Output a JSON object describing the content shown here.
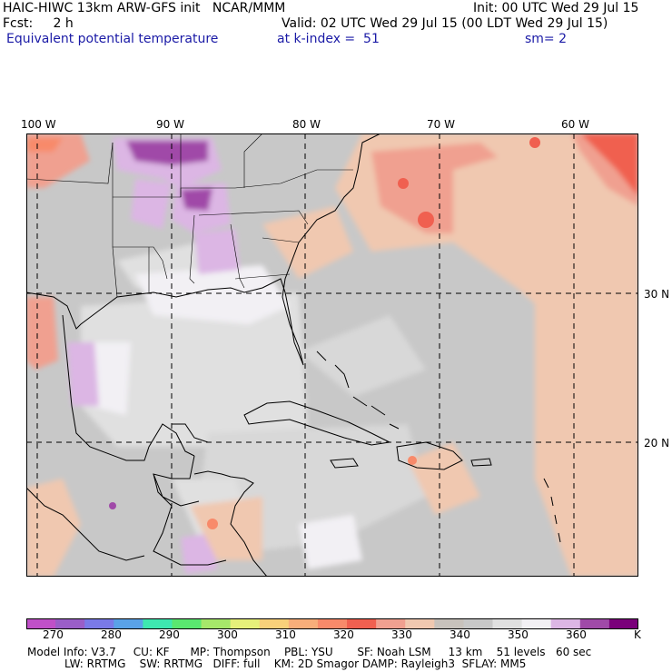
{
  "header": {
    "line1_left": "HAIC-HIWC 13km ARW-GFS init   NCAR/MMM",
    "line1_right": "Init: 00 UTC Wed 29 Jul 15",
    "line2_left": "Fcst:     2 h",
    "line2_right": "Valid: 02 UTC Wed 29 Jul 15 (00 LDT Wed 29 Jul 15)",
    "field": "Equivalent potential temperature",
    "level": "at k-index =  51",
    "smooth": "sm= 2"
  },
  "axes": {
    "lon_labels": [
      "100 W",
      "90 W",
      "80 W",
      "70 W",
      "60 W"
    ],
    "lat_labels": [
      "30 N",
      "20 N"
    ]
  },
  "colorbar": {
    "labels": [
      "270",
      "280",
      "290",
      "300",
      "310",
      "320",
      "330",
      "340",
      "350",
      "360"
    ],
    "unit": "K",
    "colors": [
      "#c050c8",
      "#9a5ec8",
      "#7a7ae8",
      "#5aa2e8",
      "#3ee8b0",
      "#5ae870",
      "#a6e86a",
      "#e6f07a",
      "#f8d07a",
      "#f8ae7a",
      "#f88a6a",
      "#f06050",
      "#f0a090",
      "#f0c8b0",
      "#c8c2bc",
      "#c8c8c8",
      "#e0e0e0",
      "#f2f0f4",
      "#dcb6e4",
      "#a04aa8",
      "#7a007a"
    ]
  },
  "model_info": {
    "line1": "Model Info: V3.7     CU: KF      MP: Thompson    PBL: YSU       SF: Noah LSM     13 km    51 levels   60 sec",
    "line2": "LW: RRTMG    SW: RRTMG   DIFF: full    KM: 2D Smagor DAMP: Rayleigh3  SFLAY: MM5"
  }
}
